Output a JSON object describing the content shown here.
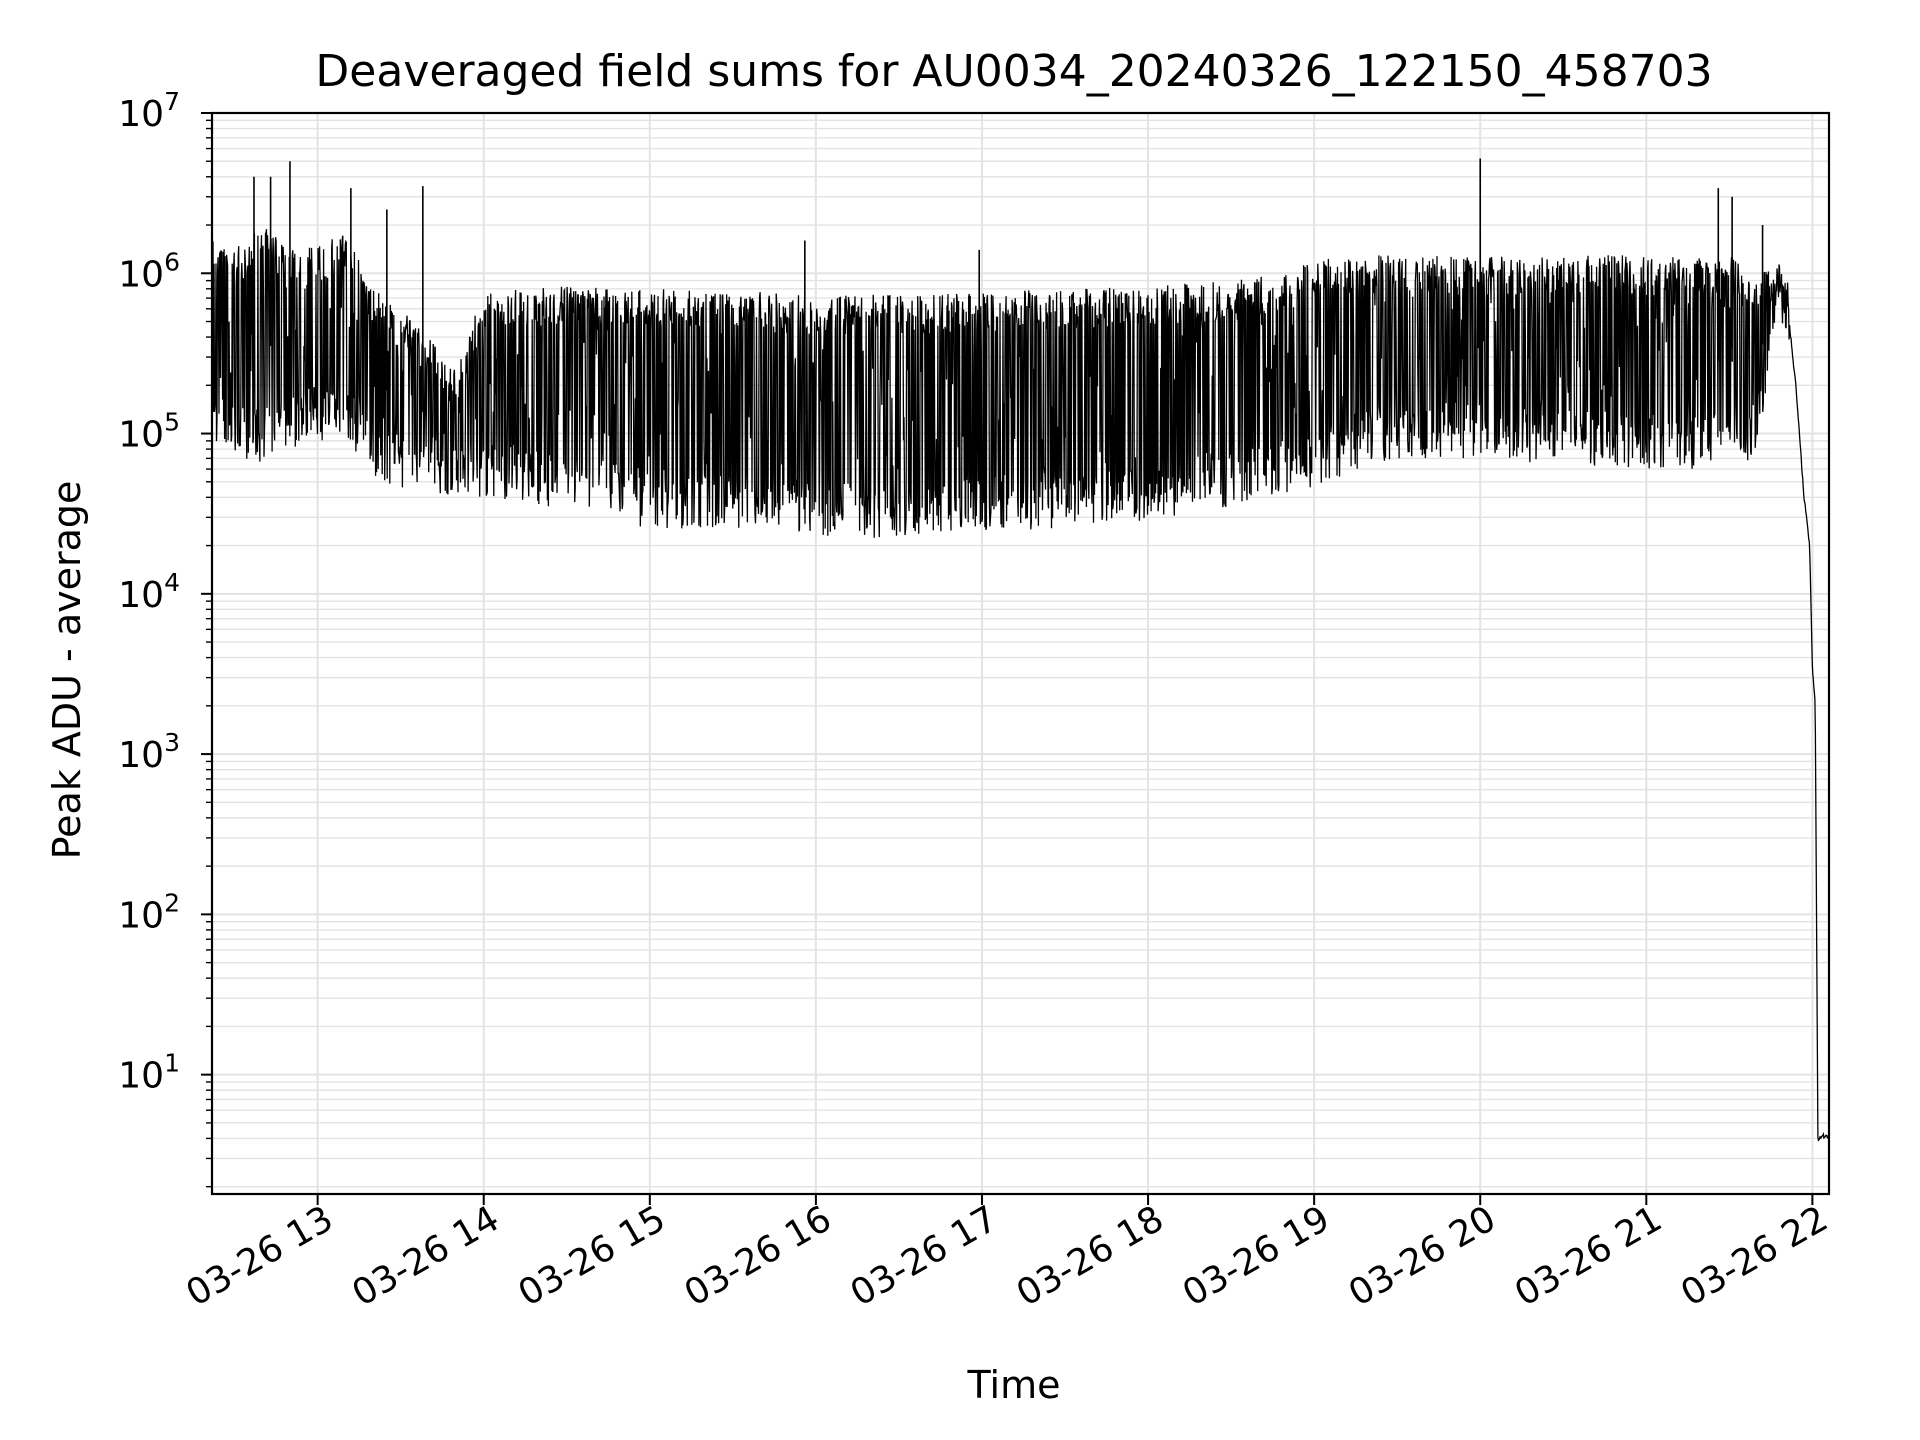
{
  "chart_data": {
    "type": "line",
    "title": "Deaveraged field sums for AU0034_20240326_122150_458703",
    "xlabel": "Time",
    "ylabel": "Peak ADU - average",
    "x_scale": "time",
    "y_scale": "log",
    "xlim": [
      "2024-03-26T12:21:50",
      "2024-03-26T22:06:00"
    ],
    "ylim": [
      1.8,
      10000000
    ],
    "grid": true,
    "line_color": "#000000",
    "grid_color": "#e3e3e3",
    "x_ticks": [
      {
        "t": "2024-03-26T13:00:00",
        "label": "03-26 13"
      },
      {
        "t": "2024-03-26T14:00:00",
        "label": "03-26 14"
      },
      {
        "t": "2024-03-26T15:00:00",
        "label": "03-26 15"
      },
      {
        "t": "2024-03-26T16:00:00",
        "label": "03-26 16"
      },
      {
        "t": "2024-03-26T17:00:00",
        "label": "03-26 17"
      },
      {
        "t": "2024-03-26T18:00:00",
        "label": "03-26 18"
      },
      {
        "t": "2024-03-26T19:00:00",
        "label": "03-26 19"
      },
      {
        "t": "2024-03-26T20:00:00",
        "label": "03-26 20"
      },
      {
        "t": "2024-03-26T21:00:00",
        "label": "03-26 21"
      },
      {
        "t": "2024-03-26T22:00:00",
        "label": "03-26 22"
      }
    ],
    "y_ticks": [
      {
        "value": 10,
        "base": "10",
        "exp": "1"
      },
      {
        "value": 100,
        "base": "10",
        "exp": "2"
      },
      {
        "value": 1000,
        "base": "10",
        "exp": "3"
      },
      {
        "value": 10000,
        "base": "10",
        "exp": "4"
      },
      {
        "value": 100000,
        "base": "10",
        "exp": "5"
      },
      {
        "value": 1000000,
        "base": "10",
        "exp": "6"
      },
      {
        "value": 10000000,
        "base": "10",
        "exp": "7"
      }
    ],
    "series": [
      {
        "x": [
          "2024-03-26T12:22:00",
          "2024-03-26T12:30:00",
          "2024-03-26T12:40:00",
          "2024-03-26T12:50:00",
          "2024-03-26T13:00:00",
          "2024-03-26T13:10:00",
          "2024-03-26T13:20:00",
          "2024-03-26T13:30:00",
          "2024-03-26T13:40:00",
          "2024-03-26T13:50:00",
          "2024-03-26T14:00:00",
          "2024-03-26T14:15:00",
          "2024-03-26T14:30:00",
          "2024-03-26T14:45:00",
          "2024-03-26T15:00:00",
          "2024-03-26T15:15:00",
          "2024-03-26T15:30:00",
          "2024-03-26T15:45:00",
          "2024-03-26T16:00:00",
          "2024-03-26T16:15:00",
          "2024-03-26T16:30:00",
          "2024-03-26T16:45:00",
          "2024-03-26T17:00:00",
          "2024-03-26T17:15:00",
          "2024-03-26T17:30:00",
          "2024-03-26T17:45:00",
          "2024-03-26T18:00:00",
          "2024-03-26T18:15:00",
          "2024-03-26T18:30:00",
          "2024-03-26T18:45:00",
          "2024-03-26T19:00:00",
          "2024-03-26T19:15:00",
          "2024-03-26T19:30:00",
          "2024-03-26T19:45:00",
          "2024-03-26T20:00:00",
          "2024-03-26T20:15:00",
          "2024-03-26T20:30:00",
          "2024-03-26T20:45:00",
          "2024-03-26T21:00:00",
          "2024-03-26T21:15:00",
          "2024-03-26T21:30:00",
          "2024-03-26T21:40:00",
          "2024-03-26T21:47:00",
          "2024-03-26T21:51:00",
          "2024-03-26T21:54:00",
          "2024-03-26T21:57:00",
          "2024-03-26T21:59:00",
          "2024-03-26T22:00:00",
          "2024-03-26T22:01:00",
          "2024-03-26T22:02:00",
          "2024-03-26T22:03:00",
          "2024-03-26T22:04:00",
          "2024-03-26T22:06:00"
        ],
        "upper": [
          1800000,
          1400000,
          2000000,
          1400000,
          1500000,
          1800000,
          800000,
          600000,
          400000,
          250000,
          800000,
          820000,
          830000,
          810000,
          800000,
          790000,
          770000,
          760000,
          740000,
          740000,
          740000,
          745000,
          760000,
          780000,
          800000,
          820000,
          840000,
          860000,
          900000,
          980000,
          1200000,
          1300000,
          1300000,
          1300000,
          1300000,
          1300000,
          1300000,
          1300000,
          1300000,
          1300000,
          1300000,
          900000,
          1300000,
          1000000,
          200000,
          40000,
          20000,
          3500,
          2200,
          3.8,
          4.5,
          4.5,
          4.5
        ],
        "lower": [
          90000,
          70000,
          65000,
          80000,
          90000,
          90000,
          55000,
          45000,
          42000,
          40000,
          40000,
          38000,
          33000,
          30000,
          25000,
          25000,
          25000,
          24000,
          23000,
          22000,
          23000,
          24000,
          25000,
          25000,
          26000,
          27000,
          28000,
          32000,
          35000,
          40000,
          45000,
          60000,
          70000,
          70000,
          70000,
          65000,
          65000,
          62000,
          60000,
          60000,
          62000,
          70000,
          600000,
          400000,
          200000,
          40000,
          20000,
          3500,
          2000,
          3.8,
          3.8,
          3.8,
          3.8
        ]
      }
    ],
    "spikes": [
      {
        "t": "2024-03-26T12:50:00",
        "value": 5000000
      },
      {
        "t": "2024-03-26T12:43:00",
        "value": 4000000
      },
      {
        "t": "2024-03-26T12:37:00",
        "value": 4000000
      },
      {
        "t": "2024-03-26T13:12:00",
        "value": 3400000
      },
      {
        "t": "2024-03-26T13:38:00",
        "value": 3500000
      },
      {
        "t": "2024-03-26T13:25:00",
        "value": 2500000
      },
      {
        "t": "2024-03-26T15:56:00",
        "value": 1600000
      },
      {
        "t": "2024-03-26T16:59:00",
        "value": 1400000
      },
      {
        "t": "2024-03-26T20:00:00",
        "value": 5200000
      },
      {
        "t": "2024-03-26T21:26:00",
        "value": 3400000
      },
      {
        "t": "2024-03-26T21:31:00",
        "value": 3000000
      },
      {
        "t": "2024-03-26T21:42:00",
        "value": 2000000
      }
    ]
  }
}
